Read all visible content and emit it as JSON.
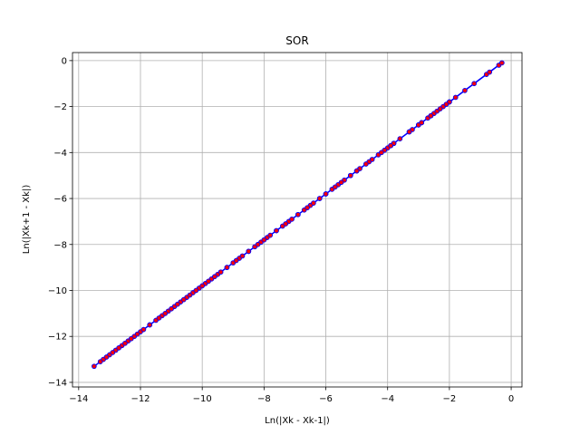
{
  "chart_data": {
    "type": "line",
    "title": "SOR",
    "xlabel": "Ln(|Xk - Xk-1|)",
    "ylabel": "Ln(|Xk+1 - Xk|)",
    "xlim": [
      -14.2,
      0.35
    ],
    "ylim": [
      -14.2,
      0.35
    ],
    "xticks": [
      -14,
      -12,
      -10,
      -8,
      -6,
      -4,
      -2,
      0
    ],
    "yticks": [
      -14,
      -12,
      -10,
      -8,
      -6,
      -4,
      -2,
      0
    ],
    "grid": true,
    "line_color": "#0000ff",
    "marker_face_color": "#ff0000",
    "marker_edge_color": "#0000ff",
    "series": [
      {
        "x": [
          -3.9,
          -2.7,
          -0.8,
          -0.4,
          -3.3,
          -2.5,
          -2.0,
          -3.0,
          -1.8,
          -2.2,
          -1.2,
          -2.4,
          -2.6,
          -0.7,
          -0.3,
          -2.0,
          -2.9,
          -1.5,
          -3.0,
          -2.3,
          -3.2,
          -3.8,
          -2.9,
          -3.6,
          -3.3,
          -4.0,
          -2.1,
          -3.8,
          -4.1,
          -2.6,
          -4.3,
          -4.6,
          -3.9,
          -4.9,
          -4.2,
          -5.2,
          -4.7,
          -5.0,
          -4.5,
          -5.4,
          -5.0,
          -5.6,
          -5.2,
          -5.8,
          -5.5,
          -6.0,
          -5.7,
          -6.2,
          -6.0,
          -6.5,
          -6.2,
          -6.7,
          -6.4,
          -6.9,
          -6.6,
          -7.2,
          -6.9,
          -7.4,
          -7.1,
          -7.6,
          -7.3,
          -7.9,
          -7.6,
          -8.1,
          -7.8,
          -8.3,
          -8.0,
          -8.5,
          -8.2,
          -8.8,
          -8.5,
          -9.0,
          -8.7,
          -9.2,
          -8.9,
          -9.5,
          -9.2,
          -9.7,
          -9.4,
          -9.9,
          -9.6,
          -10.1,
          -9.8,
          -10.3,
          -10.0,
          -10.5,
          -10.2,
          -10.7,
          -10.4,
          -10.9,
          -10.6,
          -11.1,
          -10.8,
          -11.3,
          -11.0,
          -11.5,
          -11.2,
          -11.7,
          -11.4,
          -12.0,
          -11.7,
          -12.2,
          -11.9,
          -12.4,
          -12.1,
          -12.6,
          -12.3,
          -12.8,
          -12.5,
          -13.0,
          -12.7,
          -13.2,
          -12.9,
          -13.3,
          -13.1,
          -13.5
        ]
      }
    ]
  }
}
